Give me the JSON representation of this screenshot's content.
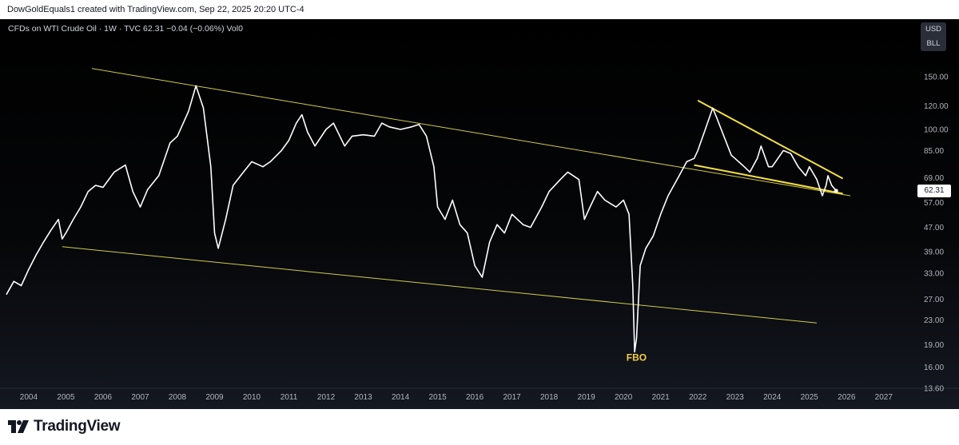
{
  "header": {
    "credit": "DowGoldEquals1 created with TradingView.com, Sep 22, 2025 20:20 UTC-4"
  },
  "legend": {
    "symbol_line": "CFDs on WTI Crude Oil · 1W · TVC  62.31  −0.04 (−0.06%)  Vol0"
  },
  "currency": {
    "top": "USD",
    "bottom": "BLL"
  },
  "price_tag": "62.31",
  "brand": {
    "name": "TradingView"
  },
  "colors": {
    "background": "#000000",
    "price_line": "#ffffff",
    "trendline": "#d4c94a",
    "triangle": "#f5e042",
    "annotation": "#f5d042",
    "axis_text": "#b2b5be"
  },
  "chart_data": {
    "type": "line",
    "scale": "log",
    "ylim": [
      13.6,
      220
    ],
    "xlim": [
      2003.4,
      2027.8
    ],
    "y_ticks": [
      "150.00",
      "120.00",
      "100.00",
      "85.00",
      "69.00",
      "57.00",
      "47.00",
      "39.00",
      "33.00",
      "27.00",
      "23.00",
      "19.00",
      "16.00",
      "13.60"
    ],
    "x_ticks": [
      "2004",
      "2005",
      "2006",
      "2007",
      "2008",
      "2009",
      "2010",
      "2011",
      "2012",
      "2013",
      "2014",
      "2015",
      "2016",
      "2017",
      "2018",
      "2019",
      "2020",
      "2021",
      "2022",
      "2023",
      "2024",
      "2025",
      "2026",
      "2027"
    ],
    "series": [
      {
        "x": [
          2003.4,
          2003.6,
          2003.8,
          2004.0,
          2004.2,
          2004.4,
          2004.6,
          2004.8,
          2004.9,
          2005.0,
          2005.2,
          2005.4,
          2005.6,
          2005.8,
          2006.0,
          2006.3,
          2006.6,
          2006.8,
          2007.0,
          2007.2,
          2007.5,
          2007.8,
          2008.0,
          2008.3,
          2008.5,
          2008.7,
          2008.9,
          2009.0,
          2009.1,
          2009.3,
          2009.5,
          2009.7,
          2010.0,
          2010.3,
          2010.5,
          2010.8,
          2011.0,
          2011.2,
          2011.35,
          2011.5,
          2011.7,
          2012.0,
          2012.2,
          2012.5,
          2012.7,
          2013.0,
          2013.3,
          2013.5,
          2013.7,
          2014.0,
          2014.3,
          2014.5,
          2014.7,
          2014.9,
          2015.0,
          2015.2,
          2015.4,
          2015.6,
          2015.8,
          2016.0,
          2016.2,
          2016.4,
          2016.6,
          2016.8,
          2017.0,
          2017.3,
          2017.5,
          2017.8,
          2018.0,
          2018.3,
          2018.5,
          2018.8,
          2018.95,
          2019.1,
          2019.3,
          2019.5,
          2019.8,
          2020.0,
          2020.15,
          2020.25,
          2020.3,
          2020.35,
          2020.45,
          2020.6,
          2020.8,
          2021.0,
          2021.2,
          2021.5,
          2021.7,
          2021.9,
          2022.0,
          2022.2,
          2022.4,
          2022.5,
          2022.7,
          2022.9,
          2023.0,
          2023.2,
          2023.4,
          2023.6,
          2023.7,
          2023.9,
          2024.0,
          2024.3,
          2024.5,
          2024.7,
          2024.9,
          2025.0,
          2025.2,
          2025.35,
          2025.45,
          2025.5,
          2025.6,
          2025.72
        ],
        "y": [
          28,
          31,
          30,
          34,
          38,
          42,
          46,
          50,
          43,
          45,
          50,
          55,
          62,
          65,
          64,
          72,
          76,
          62,
          55,
          63,
          70,
          90,
          95,
          115,
          140,
          118,
          75,
          45,
          40,
          50,
          65,
          70,
          78,
          75,
          78,
          85,
          92,
          105,
          112,
          98,
          88,
          100,
          105,
          88,
          95,
          96,
          95,
          105,
          102,
          100,
          102,
          104,
          95,
          75,
          55,
          50,
          58,
          48,
          45,
          35,
          32,
          42,
          48,
          45,
          52,
          48,
          47,
          55,
          62,
          68,
          72,
          68,
          50,
          55,
          62,
          58,
          55,
          58,
          52,
          30,
          18,
          20,
          35,
          40,
          44,
          52,
          60,
          70,
          78,
          80,
          85,
          100,
          118,
          110,
          95,
          82,
          80,
          76,
          72,
          80,
          88,
          75,
          75,
          85,
          83,
          75,
          70,
          75,
          68,
          60,
          65,
          70,
          65,
          62.31
        ]
      }
    ],
    "annotations": [
      {
        "text": "FBO",
        "x": 2020.35,
        "y": 16.8
      }
    ],
    "trendlines": [
      {
        "x": [
          2005.7,
          2026.1
        ],
        "y": [
          160,
          60
        ]
      },
      {
        "x": [
          2004.9,
          2025.2
        ],
        "y": [
          40.5,
          22.5
        ]
      },
      {
        "x": [
          2022.0,
          2025.9
        ],
        "y": [
          125,
          68.5
        ]
      },
      {
        "x": [
          2021.9,
          2025.9
        ],
        "y": [
          76,
          61
        ]
      }
    ]
  }
}
